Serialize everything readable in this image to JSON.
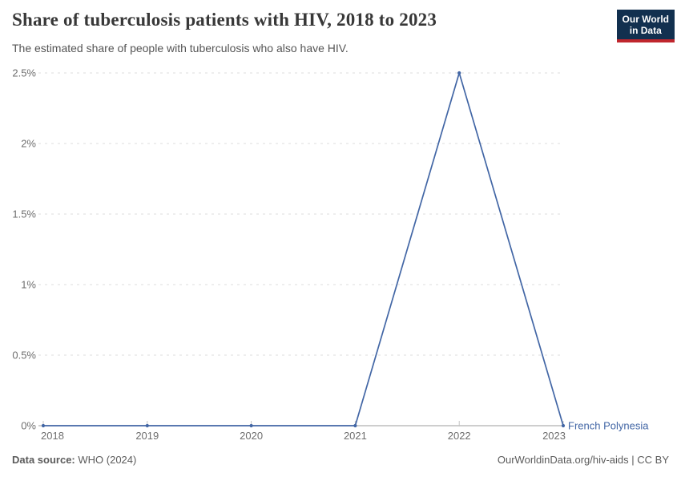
{
  "header": {
    "title": "Share of tuberculosis patients with HIV, 2018 to 2023",
    "subtitle": "The estimated share of people with tuberculosis who also have HIV.",
    "logo": {
      "line1": "Our World",
      "line2": "in Data"
    }
  },
  "chart_data": {
    "type": "line",
    "title": "Share of tuberculosis patients with HIV, 2018 to 2023",
    "x": [
      "2018",
      "2019",
      "2020",
      "2021",
      "2022",
      "2023"
    ],
    "series": [
      {
        "name": "French Polynesia",
        "values": [
          0,
          0,
          0,
          0,
          2.5,
          0
        ],
        "color": "#4266a5"
      }
    ],
    "xlabel": "",
    "ylabel": "",
    "ylim": [
      0,
      2.5
    ],
    "yticks": [
      0,
      0.5,
      1,
      1.5,
      2,
      2.5
    ],
    "ytick_labels": [
      "0%",
      "0.5%",
      "1%",
      "1.5%",
      "2%",
      "2.5%"
    ],
    "grid": "horizontal dashed",
    "legend_position": "end-of-line label"
  },
  "footer": {
    "source_label": "Data source:",
    "source_value": "WHO (2024)",
    "credit": "OurWorldinData.org/hiv-aids | CC BY"
  },
  "colors": {
    "title": "#383838",
    "subtitle": "#555555",
    "tick_label": "#6e6e6e",
    "gridline": "#dcdcdc",
    "axis_line": "#9d9d9d",
    "tick_mark": "#c4c4c4",
    "logo_bg": "#12304f",
    "logo_accent": "#c0262d"
  }
}
